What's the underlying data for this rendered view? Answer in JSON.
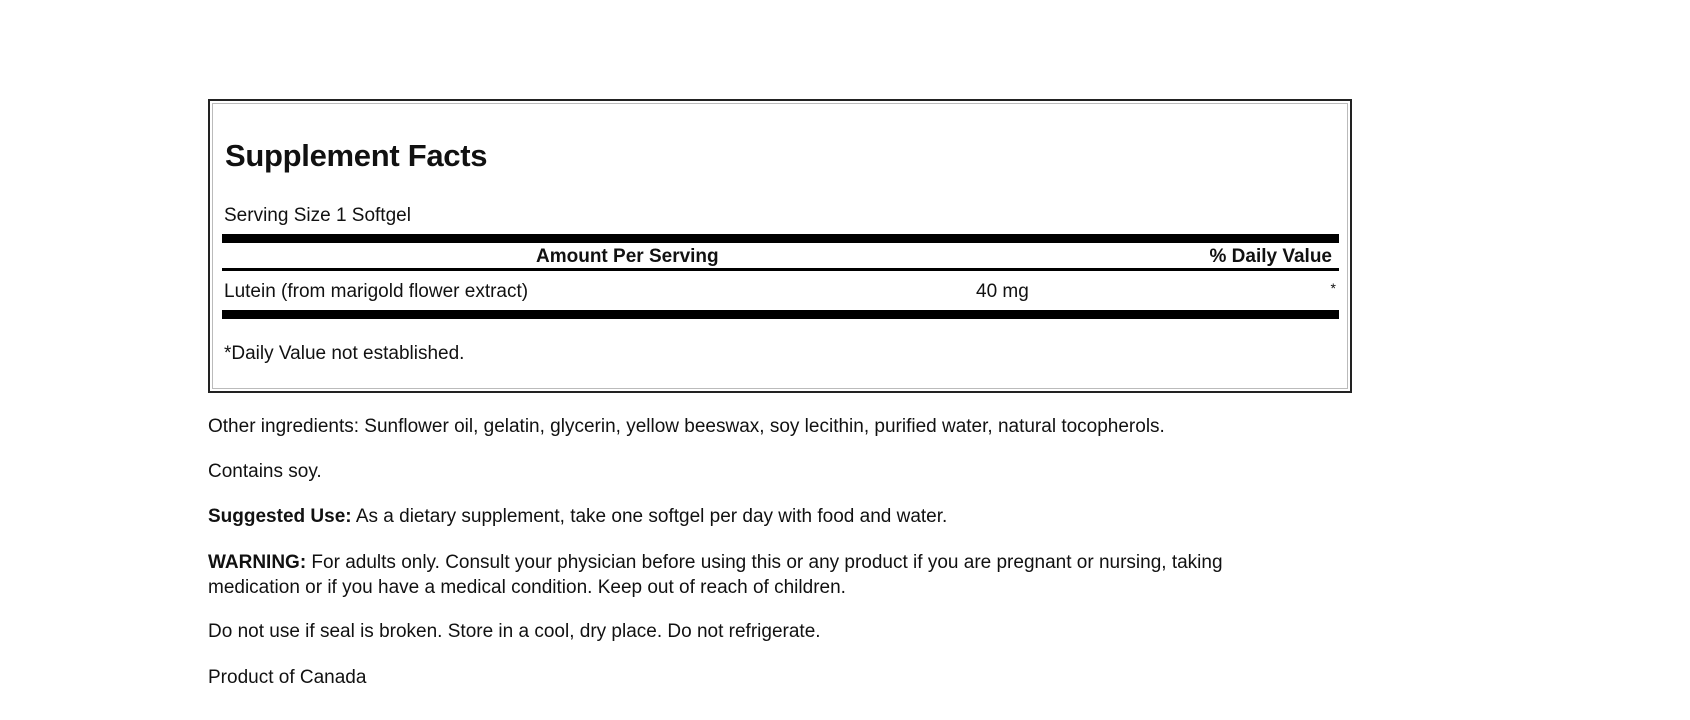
{
  "panel": {
    "title": "Supplement Facts",
    "serving_size": "Serving Size 1 Softgel",
    "header_amount": "Amount Per Serving",
    "header_dv": "% Daily Value",
    "rows": [
      {
        "name": "Lutein (from marigold flower extract)",
        "amount": "40 mg",
        "dv": "*"
      }
    ],
    "footnote": "*Daily Value not established."
  },
  "text": {
    "other_ingredients": "Other ingredients: Sunflower oil, gelatin, glycerin, yellow beeswax, soy lecithin, purified water, natural tocopherols.",
    "contains": "Contains soy.",
    "suggested_label": "Suggested Use:",
    "suggested_text": " As a dietary supplement, take one softgel per day with food and water.",
    "warning_label": "WARNING:",
    "warning_line1": " For adults only. Consult your physician before using this or any product if you are pregnant or nursing, taking",
    "warning_line2": "medication or if you have a medical condition. Keep out of reach of children.",
    "storage": "Do not use if seal is broken. Store in a cool, dry place. Do not refrigerate.",
    "origin": "Product of Canada"
  }
}
